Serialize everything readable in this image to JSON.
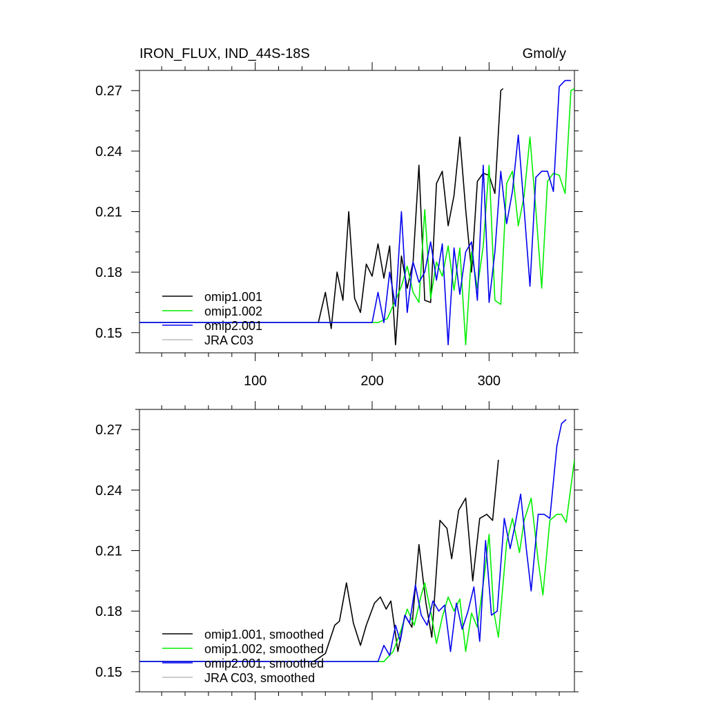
{
  "colors": {
    "omip1_001": "#000000",
    "omip1_002": "#00ee00",
    "omip2_001": "#0000ee",
    "jra_c03": "#bbbbbb"
  },
  "chart_data": [
    {
      "type": "line",
      "title": "IRON_FLUX, IND_44S-18S",
      "units": "Gmol/y",
      "xlim": [
        1,
        373
      ],
      "ylim": [
        0.14,
        0.28
      ],
      "xticks": [
        100,
        200,
        300
      ],
      "xtick_labels": [
        "100",
        "200",
        "300"
      ],
      "yticks": [
        0.15,
        0.18,
        0.21,
        0.24,
        0.27
      ],
      "ytick_labels": [
        "0.15",
        "0.18",
        "0.21",
        "0.24",
        "0.27"
      ],
      "legend": "bottom-left",
      "legend_labels": [
        "omip1.001",
        "omip1.002",
        "omip2.001",
        "JRA C03"
      ],
      "series": [
        {
          "name": "omip1.001",
          "points": [
            [
              1,
              0.155
            ],
            [
              154,
              0.155
            ],
            [
              160,
              0.17
            ],
            [
              165,
              0.152
            ],
            [
              170,
              0.18
            ],
            [
              175,
              0.166
            ],
            [
              180,
              0.21
            ],
            [
              185,
              0.167
            ],
            [
              190,
              0.16
            ],
            [
              195,
              0.184
            ],
            [
              200,
              0.178
            ],
            [
              205,
              0.194
            ],
            [
              210,
              0.177
            ],
            [
              215,
              0.193
            ],
            [
              220,
              0.144
            ],
            [
              225,
              0.188
            ],
            [
              230,
              0.172
            ],
            [
              235,
              0.185
            ],
            [
              240,
              0.233
            ],
            [
              245,
              0.166
            ],
            [
              250,
              0.165
            ],
            [
              255,
              0.224
            ],
            [
              260,
              0.23
            ],
            [
              265,
              0.203
            ],
            [
              270,
              0.218
            ],
            [
              275,
              0.247
            ],
            [
              280,
              0.211
            ],
            [
              285,
              0.18
            ],
            [
              290,
              0.225
            ],
            [
              295,
              0.229
            ],
            [
              300,
              0.228
            ],
            [
              305,
              0.219
            ],
            [
              310,
              0.27
            ],
            [
              312,
              0.271
            ]
          ]
        },
        {
          "name": "omip1.002",
          "points": [
            [
              1,
              0.155
            ],
            [
              205,
              0.155
            ],
            [
              213,
              0.157
            ],
            [
              220,
              0.166
            ],
            [
              225,
              0.173
            ],
            [
              230,
              0.183
            ],
            [
              235,
              0.17
            ],
            [
              240,
              0.165
            ],
            [
              245,
              0.211
            ],
            [
              250,
              0.167
            ],
            [
              255,
              0.185
            ],
            [
              260,
              0.178
            ],
            [
              265,
              0.193
            ],
            [
              270,
              0.171
            ],
            [
              275,
              0.192
            ],
            [
              280,
              0.144
            ],
            [
              285,
              0.19
            ],
            [
              290,
              0.172
            ],
            [
              295,
              0.193
            ],
            [
              300,
              0.233
            ],
            [
              305,
              0.166
            ],
            [
              310,
              0.164
            ],
            [
              315,
              0.224
            ],
            [
              320,
              0.23
            ],
            [
              325,
              0.203
            ],
            [
              330,
              0.218
            ],
            [
              335,
              0.247
            ],
            [
              340,
              0.211
            ],
            [
              345,
              0.172
            ],
            [
              350,
              0.225
            ],
            [
              355,
              0.229
            ],
            [
              360,
              0.228
            ],
            [
              365,
              0.219
            ],
            [
              370,
              0.27
            ],
            [
              373,
              0.271
            ]
          ]
        },
        {
          "name": "omip2.001",
          "points": [
            [
              1,
              0.155
            ],
            [
              200,
              0.155
            ],
            [
              205,
              0.17
            ],
            [
              210,
              0.155
            ],
            [
              215,
              0.18
            ],
            [
              220,
              0.163
            ],
            [
              225,
              0.21
            ],
            [
              230,
              0.16
            ],
            [
              235,
              0.185
            ],
            [
              240,
              0.175
            ],
            [
              245,
              0.18
            ],
            [
              250,
              0.195
            ],
            [
              255,
              0.176
            ],
            [
              260,
              0.194
            ],
            [
              265,
              0.144
            ],
            [
              270,
              0.192
            ],
            [
              275,
              0.169
            ],
            [
              280,
              0.19
            ],
            [
              285,
              0.195
            ],
            [
              290,
              0.166
            ],
            [
              295,
              0.233
            ],
            [
              300,
              0.165
            ],
            [
              305,
              0.19
            ],
            [
              310,
              0.23
            ],
            [
              315,
              0.204
            ],
            [
              320,
              0.22
            ],
            [
              325,
              0.248
            ],
            [
              330,
              0.211
            ],
            [
              335,
              0.173
            ],
            [
              340,
              0.227
            ],
            [
              345,
              0.23
            ],
            [
              350,
              0.23
            ],
            [
              355,
              0.22
            ],
            [
              360,
              0.272
            ],
            [
              365,
              0.275
            ],
            [
              370,
              0.275
            ]
          ]
        },
        {
          "name": "JRA C03",
          "points": []
        }
      ]
    },
    {
      "type": "line",
      "xlim": [
        1,
        373
      ],
      "ylim": [
        0.14,
        0.28
      ],
      "xticks": [
        100,
        200,
        300
      ],
      "xtick_labels": [],
      "yticks": [
        0.15,
        0.18,
        0.21,
        0.24,
        0.27
      ],
      "ytick_labels": [
        "0.15",
        "0.18",
        "0.21",
        "0.24",
        "0.27"
      ],
      "legend": "bottom-left",
      "legend_labels": [
        "omip1.001, smoothed",
        "omip1.002, smoothed",
        "omip2.001, smoothed",
        "JRA C03, smoothed"
      ],
      "series": [
        {
          "name": "omip1.001, smoothed",
          "points": [
            [
              1,
              0.155
            ],
            [
              150,
              0.155
            ],
            [
              160,
              0.159
            ],
            [
              168,
              0.173
            ],
            [
              172,
              0.175
            ],
            [
              178,
              0.194
            ],
            [
              184,
              0.174
            ],
            [
              190,
              0.163
            ],
            [
              195,
              0.173
            ],
            [
              202,
              0.184
            ],
            [
              207,
              0.187
            ],
            [
              212,
              0.181
            ],
            [
              216,
              0.185
            ],
            [
              222,
              0.16
            ],
            [
              228,
              0.178
            ],
            [
              234,
              0.172
            ],
            [
              240,
              0.213
            ],
            [
              246,
              0.184
            ],
            [
              251,
              0.167
            ],
            [
              258,
              0.225
            ],
            [
              264,
              0.221
            ],
            [
              268,
              0.206
            ],
            [
              274,
              0.23
            ],
            [
              280,
              0.236
            ],
            [
              286,
              0.195
            ],
            [
              292,
              0.226
            ],
            [
              298,
              0.228
            ],
            [
              303,
              0.225
            ],
            [
              308,
              0.255
            ]
          ]
        },
        {
          "name": "omip1.002, smoothed",
          "points": [
            [
              1,
              0.155
            ],
            [
              210,
              0.155
            ],
            [
              218,
              0.16
            ],
            [
              225,
              0.171
            ],
            [
              230,
              0.181
            ],
            [
              236,
              0.173
            ],
            [
              242,
              0.188
            ],
            [
              245,
              0.194
            ],
            [
              250,
              0.18
            ],
            [
              255,
              0.164
            ],
            [
              260,
              0.177
            ],
            [
              265,
              0.187
            ],
            [
              270,
              0.18
            ],
            [
              275,
              0.186
            ],
            [
              280,
              0.16
            ],
            [
              285,
              0.179
            ],
            [
              290,
              0.172
            ],
            [
              296,
              0.198
            ],
            [
              300,
              0.218
            ],
            [
              304,
              0.18
            ],
            [
              308,
              0.167
            ],
            [
              315,
              0.214
            ],
            [
              320,
              0.226
            ],
            [
              326,
              0.209
            ],
            [
              330,
              0.225
            ],
            [
              336,
              0.236
            ],
            [
              342,
              0.205
            ],
            [
              346,
              0.188
            ],
            [
              352,
              0.225
            ],
            [
              358,
              0.228
            ],
            [
              362,
              0.228
            ],
            [
              366,
              0.224
            ],
            [
              373,
              0.255
            ]
          ]
        },
        {
          "name": "omip2.001, smoothed",
          "points": [
            [
              1,
              0.155
            ],
            [
              205,
              0.155
            ],
            [
              210,
              0.163
            ],
            [
              215,
              0.158
            ],
            [
              220,
              0.173
            ],
            [
              224,
              0.165
            ],
            [
              228,
              0.178
            ],
            [
              232,
              0.174
            ],
            [
              237,
              0.193
            ],
            [
              242,
              0.178
            ],
            [
              247,
              0.173
            ],
            [
              252,
              0.185
            ],
            [
              257,
              0.18
            ],
            [
              262,
              0.183
            ],
            [
              267,
              0.16
            ],
            [
              272,
              0.184
            ],
            [
              277,
              0.171
            ],
            [
              282,
              0.18
            ],
            [
              287,
              0.192
            ],
            [
              292,
              0.165
            ],
            [
              297,
              0.215
            ],
            [
              302,
              0.178
            ],
            [
              307,
              0.18
            ],
            [
              313,
              0.226
            ],
            [
              318,
              0.211
            ],
            [
              322,
              0.222
            ],
            [
              327,
              0.238
            ],
            [
              332,
              0.21
            ],
            [
              336,
              0.19
            ],
            [
              342,
              0.228
            ],
            [
              347,
              0.228
            ],
            [
              352,
              0.226
            ],
            [
              358,
              0.262
            ],
            [
              362,
              0.273
            ],
            [
              366,
              0.275
            ]
          ]
        },
        {
          "name": "JRA C03, smoothed",
          "points": []
        }
      ]
    }
  ]
}
